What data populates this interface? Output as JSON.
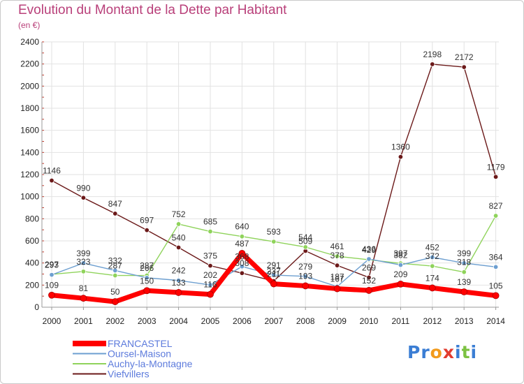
{
  "title": "Evolution du Montant de la Dette par Habitant",
  "unit": "(en €)",
  "logo": "Proxiti",
  "chart_data": {
    "type": "line",
    "x": [
      2000,
      2001,
      2002,
      2003,
      2004,
      2005,
      2006,
      2007,
      2008,
      2009,
      2010,
      2011,
      2012,
      2013,
      2014
    ],
    "ylim": [
      0,
      2400
    ],
    "yticks": [
      0,
      200,
      400,
      600,
      800,
      1000,
      1200,
      1400,
      1600,
      1800,
      2000,
      2200,
      2400
    ],
    "grid": true,
    "legend_position": "bottom-left",
    "series": [
      {
        "name": "FRANCASTEL",
        "color": "#ff0000",
        "values": [
          109,
          81,
          50,
          150,
          133,
          116,
          487,
          211,
          193,
          167,
          152,
          209,
          174,
          139,
          105
        ]
      },
      {
        "name": "Oursel-Maison",
        "color": "#6d9fd0",
        "values": [
          293,
          399,
          332,
          266,
          242,
          202,
          368,
          291,
          279,
          187,
          436,
          382,
          452,
          399,
          364
        ]
      },
      {
        "name": "Auchy-la-Montagne",
        "color": "#8fd35b",
        "values": [
          297,
          323,
          287,
          287,
          752,
          685,
          640,
          593,
          544,
          461,
          429,
          397,
          372,
          318,
          827
        ]
      },
      {
        "name": "Viefvillers",
        "color": "#6b1919",
        "values": [
          1146,
          990,
          847,
          697,
          540,
          375,
          308,
          237,
          509,
          378,
          269,
          1360,
          2198,
          2172,
          1179
        ]
      }
    ]
  }
}
